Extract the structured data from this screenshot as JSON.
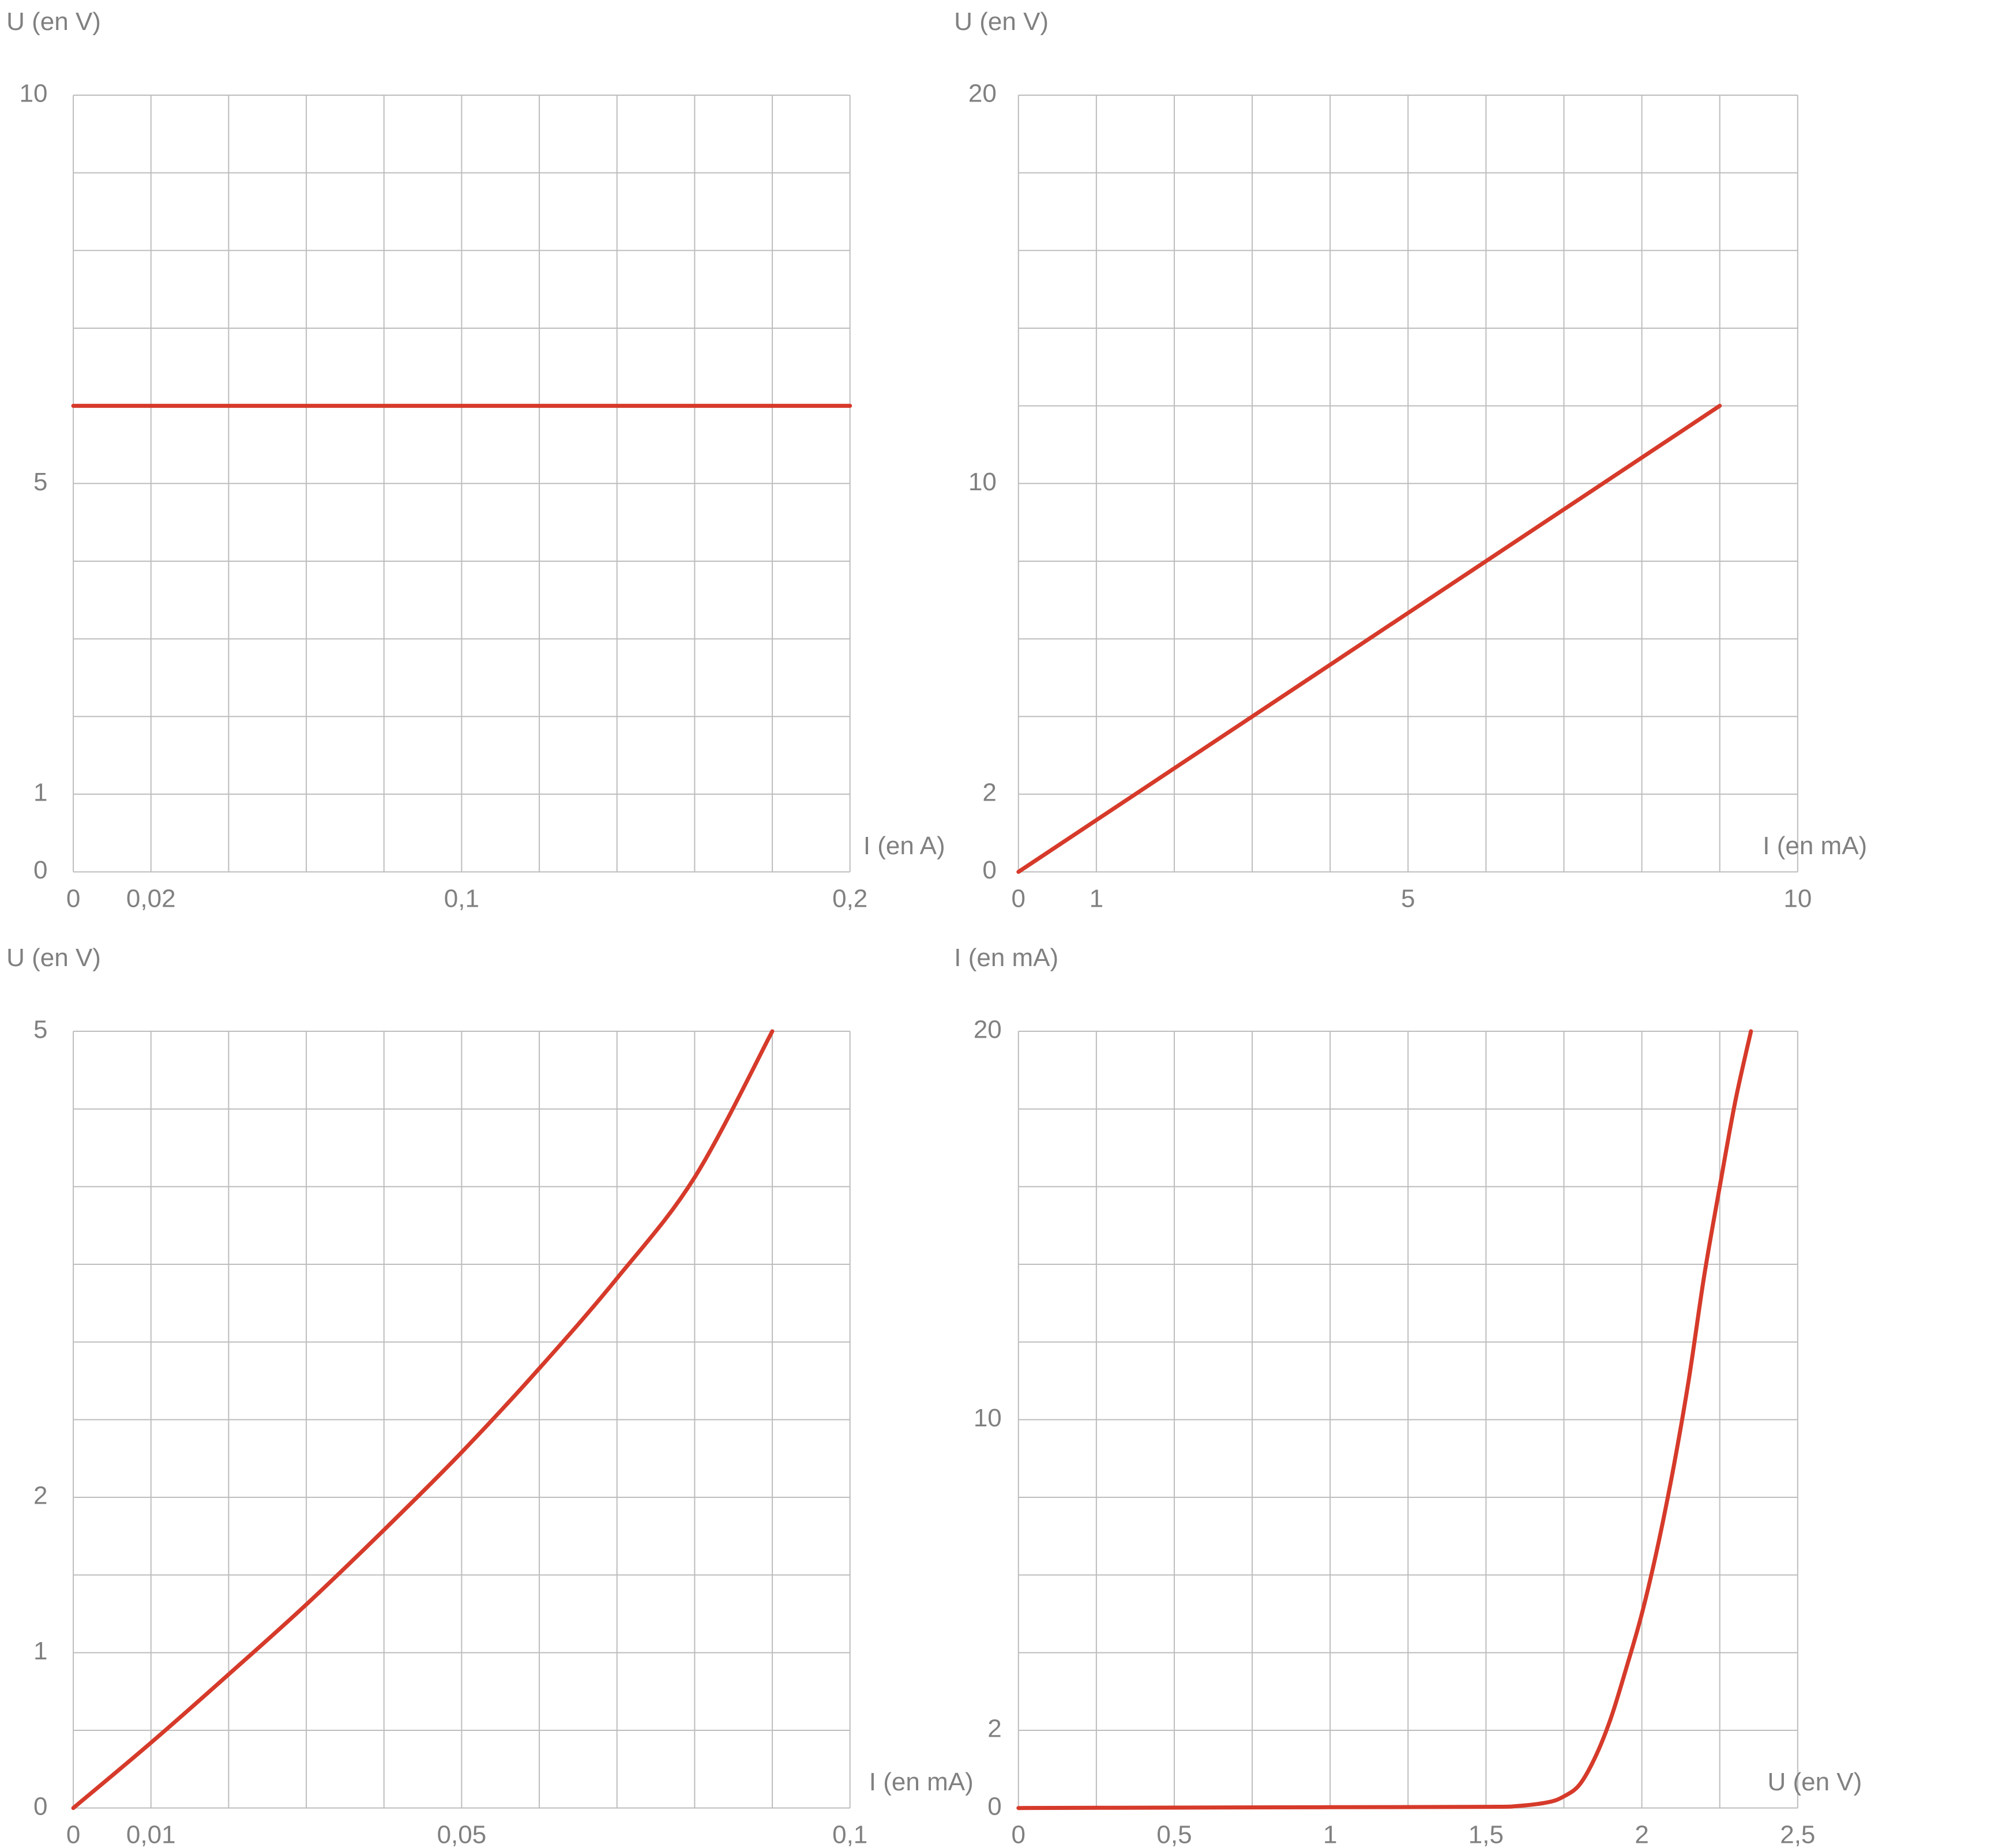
{
  "colors": {
    "curve": "#d63a2a",
    "grid": "#bdbdbd",
    "text": "#808080",
    "dark_text": "#444444"
  },
  "chart_data": [
    {
      "type": "line",
      "xlabel": "I (en A)",
      "ylabel": "U (en V)",
      "xlim": [
        0,
        0.2
      ],
      "ylim": [
        0,
        10
      ],
      "grid": true,
      "x_gridlines": 10,
      "y_gridlines": 10,
      "x_ticks": [
        {
          "v": 0,
          "label": "0"
        },
        {
          "v": 0.02,
          "label": "0,02"
        },
        {
          "v": 0.1,
          "label": "0,1"
        },
        {
          "v": 0.2,
          "label": "0,2"
        }
      ],
      "y_ticks": [
        {
          "v": 0,
          "label": "0"
        },
        {
          "v": 1,
          "label": "1"
        },
        {
          "v": 5,
          "label": "5"
        },
        {
          "v": 10,
          "label": "10"
        }
      ],
      "series": [
        {
          "x": [
            0,
            0.2
          ],
          "y": [
            6,
            6
          ]
        }
      ]
    },
    {
      "type": "line",
      "xlabel": "I (en mA)",
      "ylabel": "U (en V)",
      "xlim": [
        0,
        10
      ],
      "ylim": [
        0,
        20
      ],
      "grid": true,
      "x_gridlines": 10,
      "y_gridlines": 10,
      "x_ticks": [
        {
          "v": 0,
          "label": "0"
        },
        {
          "v": 1,
          "label": "1"
        },
        {
          "v": 5,
          "label": "5"
        },
        {
          "v": 10,
          "label": "10"
        }
      ],
      "y_ticks": [
        {
          "v": 0,
          "label": "0"
        },
        {
          "v": 2,
          "label": "2"
        },
        {
          "v": 10,
          "label": "10"
        },
        {
          "v": 20,
          "label": "20"
        }
      ],
      "series": [
        {
          "x": [
            0,
            9
          ],
          "y": [
            0,
            12
          ]
        }
      ]
    },
    {
      "type": "line",
      "xlabel": "I (en mA)",
      "ylabel": "U (en V)",
      "xlim": [
        0,
        0.1
      ],
      "ylim": [
        0,
        5
      ],
      "grid": true,
      "x_gridlines": 10,
      "y_gridlines": 10,
      "x_ticks": [
        {
          "v": 0,
          "label": "0"
        },
        {
          "v": 0.01,
          "label": "0,01"
        },
        {
          "v": 0.05,
          "label": "0,05"
        },
        {
          "v": 0.1,
          "label": "0,1"
        }
      ],
      "y_ticks": [
        {
          "v": 0,
          "label": "0"
        },
        {
          "v": 1,
          "label": "1"
        },
        {
          "v": 2,
          "label": "2"
        },
        {
          "v": 5,
          "label": "5"
        }
      ],
      "series": [
        {
          "x": [
            0,
            0.01,
            0.02,
            0.03,
            0.04,
            0.05,
            0.06,
            0.07,
            0.08,
            0.09
          ],
          "y": [
            0,
            0.42,
            0.86,
            1.31,
            1.79,
            2.29,
            2.83,
            3.41,
            4.06,
            5.0
          ]
        }
      ]
    },
    {
      "type": "line",
      "xlabel": "U (en V)",
      "ylabel": "I (en mA)",
      "xlim": [
        0,
        2.5
      ],
      "ylim": [
        0,
        20
      ],
      "grid": true,
      "x_gridlines": 10,
      "y_gridlines": 10,
      "x_ticks": [
        {
          "v": 0,
          "label": "0"
        },
        {
          "v": 0.5,
          "label": "0,5"
        },
        {
          "v": 1,
          "label": "1"
        },
        {
          "v": 1.5,
          "label": "1,5"
        },
        {
          "v": 2,
          "label": "2"
        },
        {
          "v": 2.5,
          "label": "2,5"
        }
      ],
      "y_ticks": [
        {
          "v": 0,
          "label": "0"
        },
        {
          "v": 2,
          "label": "2"
        },
        {
          "v": 10,
          "label": "10"
        },
        {
          "v": 20,
          "label": "20"
        }
      ],
      "series": [
        {
          "x": [
            0,
            0.5,
            1.0,
            1.5,
            1.6,
            1.7,
            1.75,
            1.8,
            1.85,
            1.9,
            1.95,
            2.0,
            2.05,
            2.1,
            2.15,
            2.2,
            2.25,
            2.3,
            2.35
          ],
          "y": [
            0,
            0.01,
            0.02,
            0.03,
            0.05,
            0.15,
            0.3,
            0.6,
            1.3,
            2.3,
            3.6,
            5.0,
            6.7,
            8.7,
            11.0,
            13.7,
            16.0,
            18.2,
            20.0
          ]
        }
      ]
    }
  ]
}
